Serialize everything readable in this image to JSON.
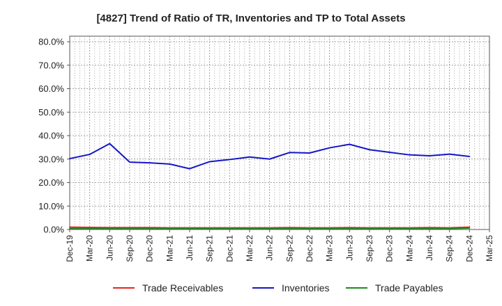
{
  "chart_data": {
    "type": "line",
    "title": "[4827]  Trend of Ratio of TR, Inventories and TP to Total Assets",
    "categories": [
      "Dec-19",
      "Mar-20",
      "Jun-20",
      "Sep-20",
      "Dec-20",
      "Mar-21",
      "Jun-21",
      "Sep-21",
      "Dec-21",
      "Mar-22",
      "Jun-22",
      "Sep-22",
      "Dec-22",
      "Mar-23",
      "Jun-23",
      "Sep-23",
      "Dec-23",
      "Mar-24",
      "Jun-24",
      "Sep-24",
      "Dec-24",
      "Mar-25"
    ],
    "y_tick_labels": [
      "0.0%",
      "10.0%",
      "20.0%",
      "30.0%",
      "40.0%",
      "50.0%",
      "60.0%",
      "70.0%",
      "80.0%"
    ],
    "ylim": [
      0,
      80
    ],
    "grid": true,
    "legend_position": "bottom",
    "series": [
      {
        "name": "Trade Receivables",
        "color": "#e8231b",
        "values": [
          1.0,
          0.9,
          0.8,
          0.8,
          0.8,
          0.7,
          0.7,
          0.7,
          0.7,
          0.7,
          0.7,
          0.8,
          0.7,
          0.7,
          0.8,
          0.7,
          0.7,
          0.7,
          0.8,
          0.7,
          1.0,
          null
        ]
      },
      {
        "name": "Inventories",
        "color": "#1515c8",
        "values": [
          30.2,
          32.0,
          36.6,
          28.7,
          28.4,
          27.9,
          25.9,
          28.9,
          29.8,
          30.9,
          30.0,
          32.8,
          32.6,
          34.8,
          36.3,
          34.0,
          32.9,
          31.8,
          31.4,
          32.1,
          31.1,
          null
        ]
      },
      {
        "name": "Trade Payables",
        "color": "#1e8a1e",
        "values": [
          0.4,
          0.4,
          0.4,
          0.4,
          0.4,
          0.4,
          0.4,
          0.4,
          0.4,
          0.4,
          0.4,
          0.4,
          0.4,
          0.4,
          0.4,
          0.4,
          0.4,
          0.4,
          0.4,
          0.4,
          0.6,
          null
        ]
      }
    ]
  }
}
